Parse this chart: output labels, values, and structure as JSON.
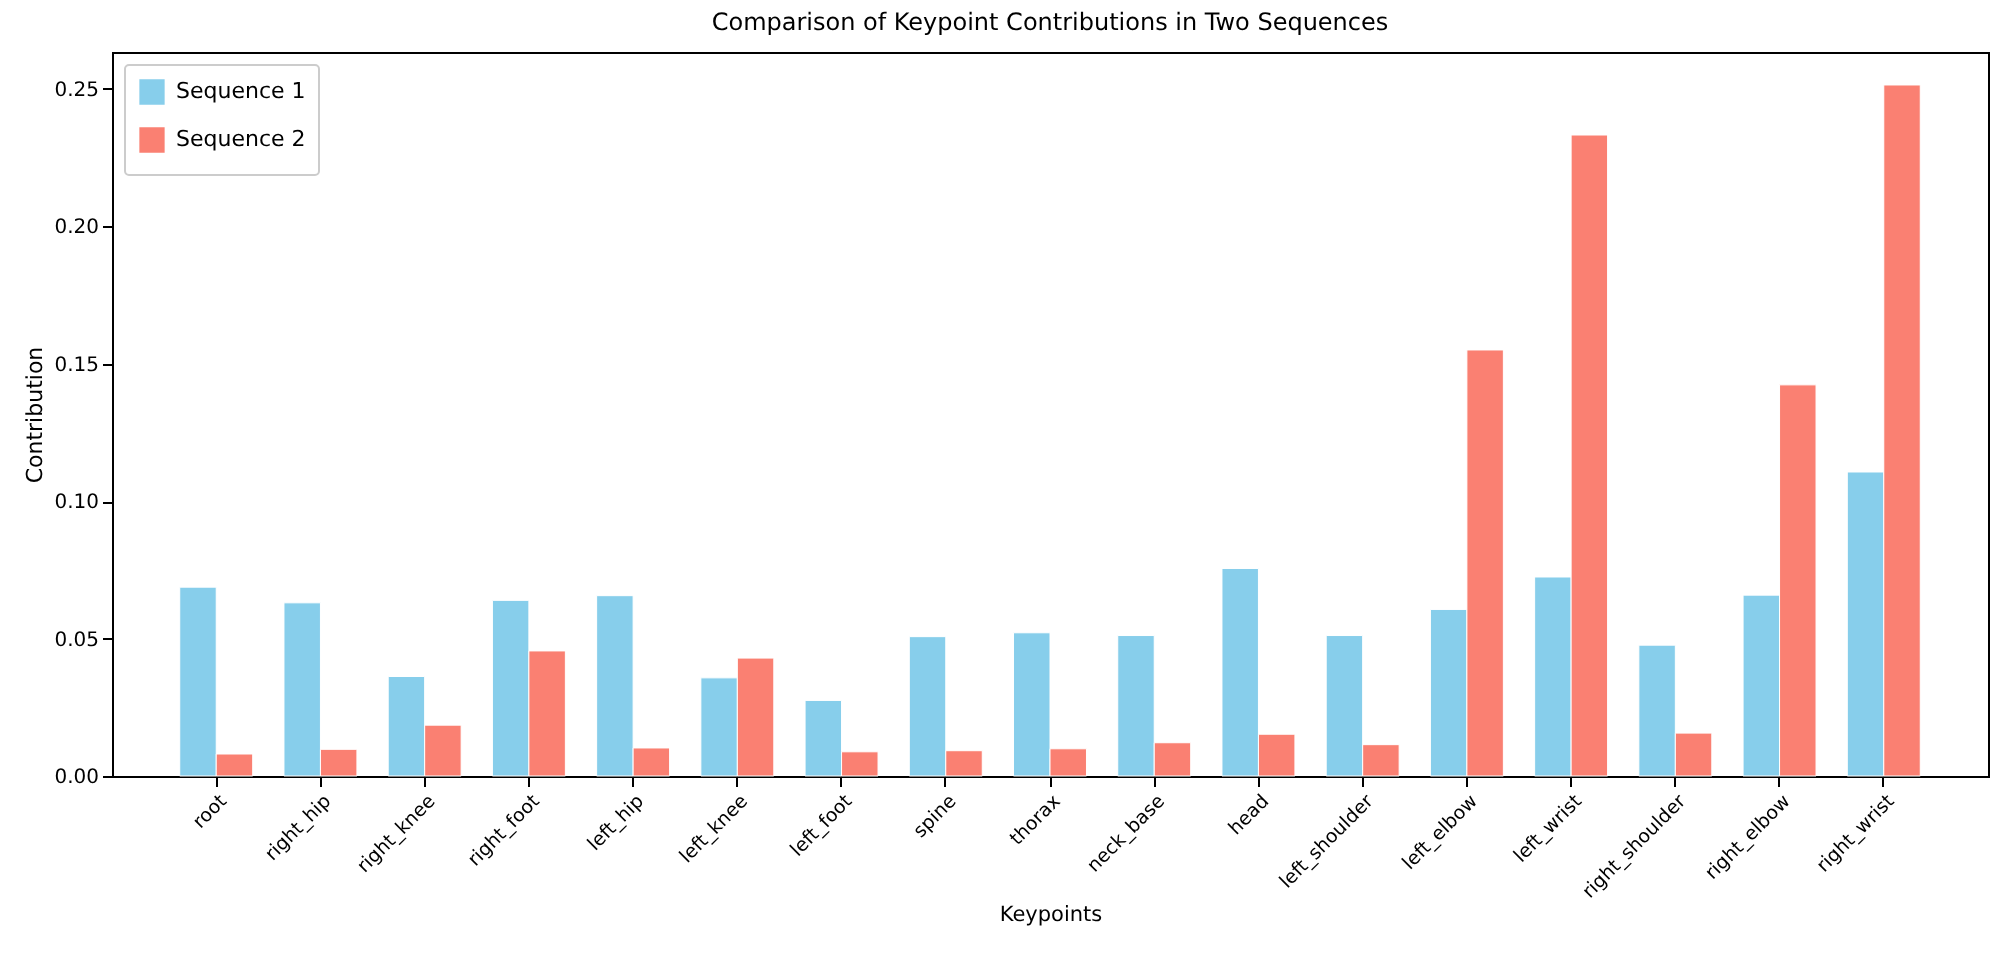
{
  "chart_data": {
    "type": "bar",
    "title": "Comparison of Keypoint Contributions in Two Sequences",
    "xlabel": "Keypoints",
    "ylabel": "Contribution",
    "categories": [
      "root",
      "right_hip",
      "right_knee",
      "right_foot",
      "left_hip",
      "left_knee",
      "left_foot",
      "spine",
      "thorax",
      "neck_base",
      "head",
      "left_shoulder",
      "left_elbow",
      "left_wrist",
      "right_shoulder",
      "right_elbow",
      "right_wrist"
    ],
    "series": [
      {
        "name": "Sequence 1",
        "color": "#87ceeb",
        "values": [
          0.0687,
          0.063,
          0.0362,
          0.0639,
          0.0656,
          0.0357,
          0.0275,
          0.0507,
          0.0521,
          0.0511,
          0.0755,
          0.0511,
          0.0606,
          0.0724,
          0.0476,
          0.0658,
          0.1106
        ]
      },
      {
        "name": "Sequence 2",
        "color": "#fa8072",
        "values": [
          0.008,
          0.0097,
          0.0185,
          0.0455,
          0.0102,
          0.0429,
          0.0088,
          0.0092,
          0.0099,
          0.0121,
          0.0152,
          0.0114,
          0.155,
          0.2332,
          0.0156,
          0.1423,
          0.2514
        ]
      }
    ],
    "ylim": [
      0,
      0.2634
    ],
    "yticks": [
      {
        "value": 0,
        "label": "0.00"
      },
      {
        "value": 0.05,
        "label": "0.05"
      },
      {
        "value": 0.1,
        "label": "0.10"
      },
      {
        "value": 0.15,
        "label": "0.15"
      },
      {
        "value": 0.2,
        "label": "0.20"
      },
      {
        "value": 0.25,
        "label": "0.25"
      }
    ],
    "grid": false,
    "legend": "top left"
  }
}
